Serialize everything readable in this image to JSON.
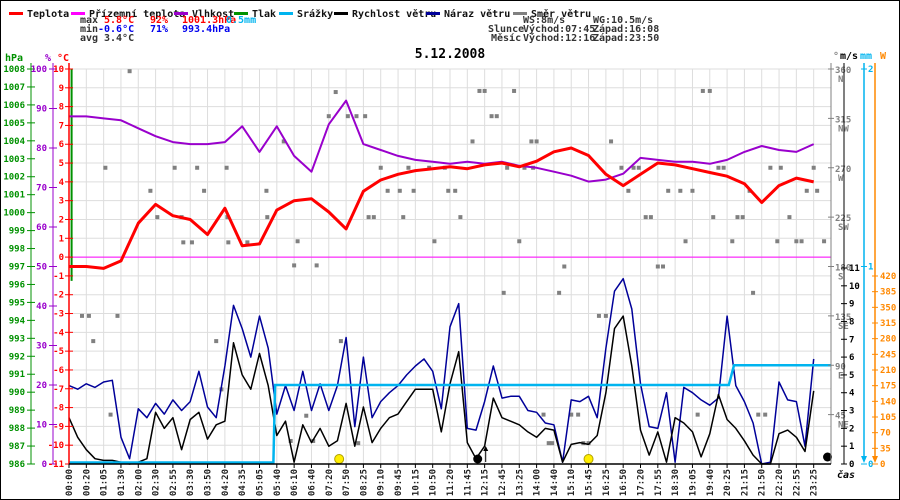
{
  "title": "5.12.2008",
  "colors": {
    "temperature": "#ff0000",
    "ground_temperature": "#ff00ff",
    "humidity": "#9900cc",
    "pressure": "#009100",
    "precipitation": "#00b4ef",
    "wind_speed": "#000000",
    "wind_gust": "#000099",
    "wind_direction": "#808080",
    "radiation": "#ff8800",
    "max_values": "#ff0000",
    "min_values": "#0000ee",
    "grid": "#dddddd",
    "text_dark": "#333333"
  },
  "legend": [
    {
      "label": "Teplota",
      "color_key": "temperature",
      "x": 8
    },
    {
      "label": "Přízemní teplota",
      "color_key": "ground_temperature",
      "x": 70
    },
    {
      "label": "Vlhkost",
      "color_key": "humidity",
      "x": 173
    },
    {
      "label": "Tlak",
      "color_key": "pressure",
      "x": 233
    },
    {
      "label": "Srážky",
      "color_key": "precipitation",
      "x": 278
    },
    {
      "label": "Rychlost větru",
      "color_key": "wind_speed",
      "x": 333
    },
    {
      "label": "Náraz větru",
      "color_key": "wind_gust",
      "x": 425
    },
    {
      "label": "Směr větru",
      "color_key": "wind_direction",
      "x": 512
    }
  ],
  "stats": {
    "max_label": "max",
    "max_temp": "5.8°C",
    "max_hum": "92%",
    "max_pres": "1001.3hPa",
    "max_precip": "0.5mm",
    "min_label": "min",
    "min_temp": "-0.6°C",
    "min_hum": "71%",
    "min_pres": "993.4hPa",
    "avg_label": "avg",
    "avg_temp": "3.4°C"
  },
  "info": {
    "ws": "WS:8m/s",
    "wg": "WG:10.5m/s",
    "sun_label": "Slunce",
    "sun_rise": "Východ:07:45",
    "sun_set": "Západ:16:08",
    "moon_label": "Měsíc",
    "moon_rise": "Východ:12:16",
    "moon_set": "Západ:23:50"
  },
  "axes": {
    "hpa": {
      "unit": "hPa",
      "ticks": [
        1008,
        1007,
        1006,
        1005,
        1004,
        1003,
        1002,
        1001,
        1000,
        999,
        998,
        997,
        996,
        995,
        994,
        993,
        992,
        991,
        990,
        989,
        988,
        987,
        986
      ]
    },
    "humidity": {
      "unit": "%",
      "ticks": [
        100,
        90,
        80,
        70,
        60,
        50,
        40,
        30,
        20,
        10,
        0
      ]
    },
    "temperature": {
      "unit": "°C",
      "ticks": [
        10,
        9,
        8,
        7,
        6,
        5,
        4,
        3,
        2,
        1,
        0,
        -1,
        -2,
        -3,
        -4,
        -5,
        -6,
        -7,
        -8,
        -9,
        -10,
        -11
      ]
    },
    "wind_direction": {
      "unit": "°",
      "ticks": [
        [
          360,
          "N"
        ],
        [
          315,
          "NW"
        ],
        [
          270,
          "W"
        ],
        [
          225,
          "SW"
        ],
        [
          180,
          "S"
        ],
        [
          135,
          "SE"
        ],
        [
          90,
          "E"
        ],
        [
          45,
          "NE"
        ]
      ]
    },
    "wind_speed": {
      "unit": "m/s",
      "ticks": [
        11,
        10,
        9,
        8,
        7,
        6,
        5,
        4,
        3,
        2,
        1,
        0
      ]
    },
    "precipitation": {
      "unit": "mm",
      "ticks": [
        2,
        1,
        0
      ]
    },
    "radiation": {
      "unit": "W",
      "ticks": [
        420,
        385,
        350,
        315,
        280,
        245,
        210,
        175,
        140,
        105,
        70,
        35,
        0
      ]
    }
  },
  "x_axis": {
    "label": "čas",
    "ticks": [
      "00:00",
      "00:20",
      "01:05",
      "01:30",
      "02:00",
      "02:30",
      "02:55",
      "03:30",
      "03:50",
      "04:20",
      "04:35",
      "05:05",
      "05:40",
      "06:10",
      "06:40",
      "07:20",
      "07:50",
      "08:25",
      "09:10",
      "09:45",
      "10:15",
      "10:50",
      "11:20",
      "11:45",
      "12:15",
      "12:45",
      "13:25",
      "14:00",
      "14:40",
      "15:10",
      "15:45",
      "16:25",
      "16:50",
      "17:20",
      "17:55",
      "18:30",
      "19:05",
      "19:40",
      "20:25",
      "21:15",
      "21:50",
      "22:20",
      "22:55",
      "23:25"
    ]
  },
  "chart_data": {
    "type": "line",
    "x_unit": "tick-index (irregular event times, evenly spaced ticks)",
    "temperature_ylim": [
      -11,
      10
    ],
    "humidity_ylim": [
      0,
      100
    ],
    "pressure_ylim": [
      986,
      1008
    ],
    "wind_ylim": [
      0,
      11
    ],
    "precip_ylim": [
      0,
      2
    ],
    "direction_ylim": [
      0,
      360
    ],
    "radiation_ylim": [
      0,
      420
    ],
    "series": [
      {
        "name": "Teplota",
        "unit": "°C",
        "color_key": "temperature",
        "width": 3,
        "x_step": 1,
        "values": [
          -0.5,
          -0.5,
          -0.6,
          -0.2,
          1.8,
          2.8,
          2.2,
          2.0,
          1.2,
          2.6,
          0.6,
          0.7,
          2.5,
          3.0,
          3.1,
          2.4,
          1.5,
          3.5,
          4.1,
          4.4,
          4.6,
          4.7,
          4.8,
          4.7,
          4.9,
          5.0,
          4.8,
          5.1,
          5.6,
          5.8,
          5.4,
          4.4,
          3.8,
          4.4,
          5.0,
          4.9,
          4.7,
          4.5,
          4.3,
          3.9,
          2.9,
          3.8,
          4.2,
          4.0
        ]
      },
      {
        "name": "Přízemní teplota",
        "unit": "°C",
        "color_key": "ground_temperature",
        "width": 1,
        "constant": 0.0
      },
      {
        "name": "Vlhkost",
        "unit": "%",
        "color_key": "humidity",
        "width": 2,
        "x_step": 1,
        "values": [
          88,
          88,
          87.5,
          87,
          85,
          83,
          81.5,
          81,
          81,
          81.5,
          85.5,
          79,
          85.5,
          78,
          74,
          86,
          92,
          81,
          79.5,
          78,
          77,
          76.5,
          76,
          76.5,
          76,
          76.5,
          75.5,
          75,
          74,
          73,
          71.5,
          72,
          73.5,
          77.5,
          77,
          76.5,
          76.5,
          76,
          77,
          79,
          80.5,
          79.5,
          79,
          81
        ]
      },
      {
        "name": "Náraz větru",
        "unit": "m/s",
        "color_key": "wind_gust",
        "width": 1.5,
        "x_step": 0.5,
        "values": [
          4.4,
          4.2,
          4.5,
          4.3,
          4.6,
          4.7,
          1.5,
          0.3,
          3.1,
          2.6,
          3.4,
          2.8,
          3.6,
          3.0,
          3.5,
          5.2,
          3.2,
          2.6,
          5.5,
          8.9,
          7.6,
          6.0,
          8.3,
          6.5,
          2.8,
          4.4,
          3.0,
          5.2,
          3.0,
          4.5,
          3.0,
          4.4,
          7.1,
          2.1,
          6.0,
          2.6,
          3.5,
          4.0,
          4.4,
          5.0,
          5.5,
          5.9,
          5.2,
          3.1,
          7.7,
          9.0,
          2.0,
          1.9,
          3.5,
          5.5,
          3.7,
          3.8,
          3.8,
          3.0,
          2.9,
          2.3,
          2.2,
          0.1,
          3.6,
          3.5,
          3.8,
          2.6,
          6.5,
          9.7,
          10.4,
          8.7,
          4.5,
          2.1,
          2.0,
          4.0,
          0.1,
          4.3,
          4.0,
          3.6,
          3.3,
          3.7,
          8.3,
          4.4,
          3.5,
          2.3,
          0.0,
          0.1,
          4.6,
          3.6,
          3.5,
          1.0,
          5.9
        ]
      },
      {
        "name": "Rychlost větru",
        "unit": "m/s",
        "color_key": "wind_speed",
        "width": 1.5,
        "x_step": 0.5,
        "values": [
          2.6,
          1.5,
          0.8,
          0.3,
          0.2,
          0.2,
          0.1,
          0.0,
          0.1,
          0.3,
          2.9,
          2.0,
          2.6,
          0.8,
          2.5,
          2.9,
          1.4,
          2.2,
          2.4,
          6.8,
          5.0,
          4.2,
          6.2,
          4.4,
          1.6,
          2.4,
          0.1,
          2.2,
          1.2,
          2.0,
          1.0,
          1.3,
          3.4,
          1.0,
          3.2,
          1.2,
          2.0,
          2.6,
          2.8,
          3.5,
          4.2,
          4.2,
          4.2,
          1.8,
          4.5,
          6.3,
          1.2,
          0.3,
          1.0,
          3.7,
          2.6,
          2.4,
          2.2,
          1.8,
          1.5,
          2.0,
          1.9,
          0.1,
          1.1,
          1.2,
          1.1,
          1.6,
          4.0,
          7.6,
          8.3,
          5.5,
          1.9,
          0.5,
          1.8,
          0.1,
          2.6,
          2.3,
          1.8,
          0.4,
          1.7,
          3.9,
          2.5,
          2.0,
          1.3,
          0.5,
          0.0,
          0.0,
          1.7,
          1.9,
          1.5,
          0.7,
          4.1
        ]
      }
    ],
    "precipitation_steps": [
      [
        0,
        0
      ],
      [
        11.8,
        0
      ],
      [
        11.9,
        0.4
      ],
      [
        38.1,
        0.4
      ],
      [
        38.4,
        0.5
      ],
      [
        44,
        0.5
      ]
    ],
    "wind_direction_points": [
      [
        0.75,
        135
      ],
      [
        1.15,
        135
      ],
      [
        1.4,
        112
      ],
      [
        2.1,
        270
      ],
      [
        2.4,
        45
      ],
      [
        2.8,
        135
      ],
      [
        3.5,
        358
      ],
      [
        4.7,
        249
      ],
      [
        5.1,
        225
      ],
      [
        6.1,
        270
      ],
      [
        6.5,
        225
      ],
      [
        6.6,
        202
      ],
      [
        7.1,
        202
      ],
      [
        7.4,
        270
      ],
      [
        7.8,
        249
      ],
      [
        8.5,
        112
      ],
      [
        8.8,
        68
      ],
      [
        9.1,
        270
      ],
      [
        9.15,
        225
      ],
      [
        9.2,
        202
      ],
      [
        10.3,
        202
      ],
      [
        11.4,
        249
      ],
      [
        11.45,
        225
      ],
      [
        12.4,
        294
      ],
      [
        12.8,
        21
      ],
      [
        13.0,
        181
      ],
      [
        13.2,
        203
      ],
      [
        13.7,
        44
      ],
      [
        14.1,
        21
      ],
      [
        14.3,
        181
      ],
      [
        15.0,
        317
      ],
      [
        15.4,
        339
      ],
      [
        15.7,
        112
      ],
      [
        16.1,
        317
      ],
      [
        16.6,
        317
      ],
      [
        16.7,
        19
      ],
      [
        17.1,
        317
      ],
      [
        17.3,
        225
      ],
      [
        17.6,
        225
      ],
      [
        18.0,
        270
      ],
      [
        18.4,
        249
      ],
      [
        19.1,
        249
      ],
      [
        19.3,
        225
      ],
      [
        19.6,
        270
      ],
      [
        19.9,
        249
      ],
      [
        20.8,
        270
      ],
      [
        21.1,
        203
      ],
      [
        21.7,
        270
      ],
      [
        21.9,
        249
      ],
      [
        22.3,
        249
      ],
      [
        22.6,
        225
      ],
      [
        23.3,
        294
      ],
      [
        23.7,
        340
      ],
      [
        24.0,
        340
      ],
      [
        24.4,
        317
      ],
      [
        24.7,
        317
      ],
      [
        25.1,
        156
      ],
      [
        25.3,
        270
      ],
      [
        25.7,
        340
      ],
      [
        26.0,
        203
      ],
      [
        26.3,
        270
      ],
      [
        26.7,
        294
      ],
      [
        26.8,
        270
      ],
      [
        27.0,
        294
      ],
      [
        27.4,
        45
      ],
      [
        27.7,
        19
      ],
      [
        27.9,
        19
      ],
      [
        28.3,
        156
      ],
      [
        28.6,
        180
      ],
      [
        29.0,
        45
      ],
      [
        29.4,
        45
      ],
      [
        29.7,
        19
      ],
      [
        30.0,
        19
      ],
      [
        30.6,
        135
      ],
      [
        31.0,
        135
      ],
      [
        31.3,
        294
      ],
      [
        31.9,
        270
      ],
      [
        32.3,
        249
      ],
      [
        32.6,
        270
      ],
      [
        32.9,
        270
      ],
      [
        33.3,
        225
      ],
      [
        33.6,
        225
      ],
      [
        34.0,
        180
      ],
      [
        34.3,
        180
      ],
      [
        34.6,
        249
      ],
      [
        35.3,
        249
      ],
      [
        35.6,
        203
      ],
      [
        36.0,
        249
      ],
      [
        36.3,
        45
      ],
      [
        36.6,
        340
      ],
      [
        37.0,
        340
      ],
      [
        37.2,
        225
      ],
      [
        37.5,
        270
      ],
      [
        37.8,
        270
      ],
      [
        38.3,
        203
      ],
      [
        38.6,
        225
      ],
      [
        38.9,
        225
      ],
      [
        39.3,
        249
      ],
      [
        39.5,
        156
      ],
      [
        39.8,
        45
      ],
      [
        40.2,
        45
      ],
      [
        40.5,
        270
      ],
      [
        40.9,
        203
      ],
      [
        41.1,
        270
      ],
      [
        41.6,
        225
      ],
      [
        42.0,
        203
      ],
      [
        42.3,
        203
      ],
      [
        42.6,
        249
      ],
      [
        43.0,
        270
      ],
      [
        43.2,
        249
      ],
      [
        43.6,
        203
      ]
    ],
    "markers": {
      "sunrise_idx": 15.6,
      "sunset_idx": 30.0,
      "moonrise_idx": 23.6,
      "moonset_idx": 43.8,
      "sun_color": "#ffee00",
      "moon_color": "#000000"
    },
    "pressure_segment": {
      "x_idx": 0.15,
      "from_hpa": 1008,
      "to_hpa": 996.2
    }
  }
}
